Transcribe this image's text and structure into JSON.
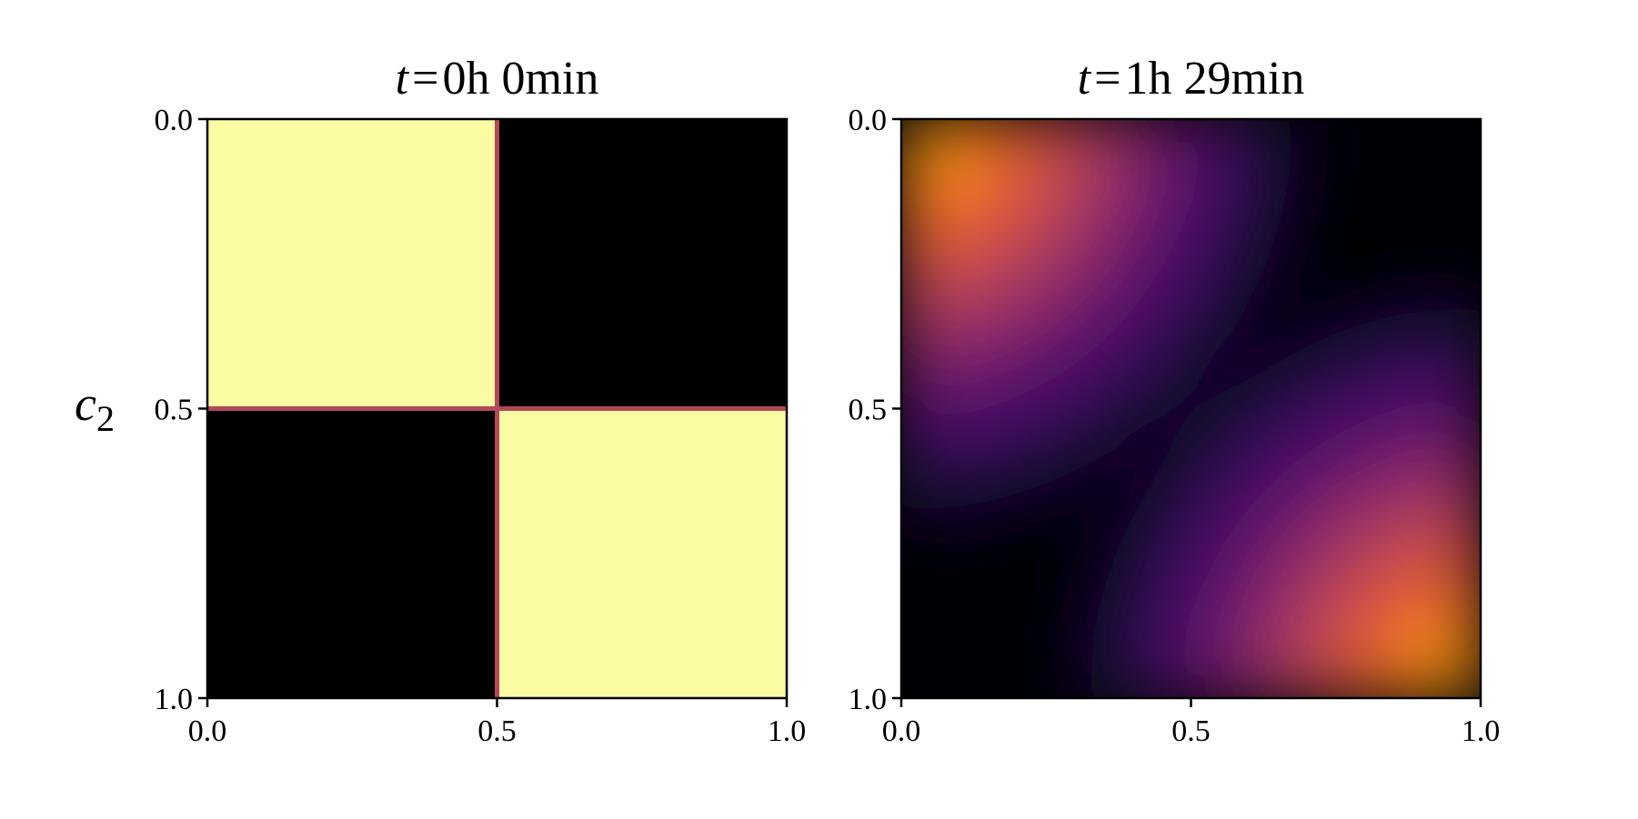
{
  "chart_data": [
    {
      "type": "heatmap",
      "title_var": "t",
      "title_eq": "=",
      "title_value": "0h 0min",
      "ylabel_var": "c",
      "ylabel_sub": "2",
      "xlim": [
        0.0,
        1.0
      ],
      "ylim": [
        0.0,
        1.0
      ],
      "y_inverted": true,
      "xticks": [
        "0.0",
        "0.5",
        "1.0"
      ],
      "yticks": [
        "0.0",
        "0.5",
        "1.0"
      ],
      "colormap": "inferno",
      "grid_cells": [
        {
          "x": [
            0.0,
            0.5
          ],
          "y": [
            0.0,
            0.5
          ],
          "value": 1.0
        },
        {
          "x": [
            0.5,
            1.0
          ],
          "y": [
            0.0,
            0.5
          ],
          "value": 0.0
        },
        {
          "x": [
            0.0,
            0.5
          ],
          "y": [
            0.5,
            1.0
          ],
          "value": 0.0
        },
        {
          "x": [
            0.5,
            1.0
          ],
          "y": [
            0.5,
            1.0
          ],
          "value": 1.0
        }
      ],
      "boundary_lines": [
        {
          "orientation": "vertical",
          "at": 0.5
        },
        {
          "orientation": "horizontal",
          "at": 0.5
        }
      ],
      "boundary_color": "#b5475a",
      "high_color": "#fafca4",
      "low_color": "#000000"
    },
    {
      "type": "heatmap",
      "title_var": "t",
      "title_eq": "=",
      "title_value": "1h 29min",
      "xlim": [
        0.0,
        1.0
      ],
      "ylim": [
        0.0,
        1.0
      ],
      "y_inverted": true,
      "xticks": [
        "0.0",
        "0.5",
        "1.0"
      ],
      "yticks": [
        "0.0",
        "0.5",
        "1.0"
      ],
      "colormap": "inferno",
      "peaks": [
        {
          "x": 0.0,
          "y": 0.0,
          "value": 0.85
        },
        {
          "x": 1.0,
          "y": 1.0,
          "value": 0.85
        }
      ],
      "max_color": "#fbb61a"
    }
  ]
}
